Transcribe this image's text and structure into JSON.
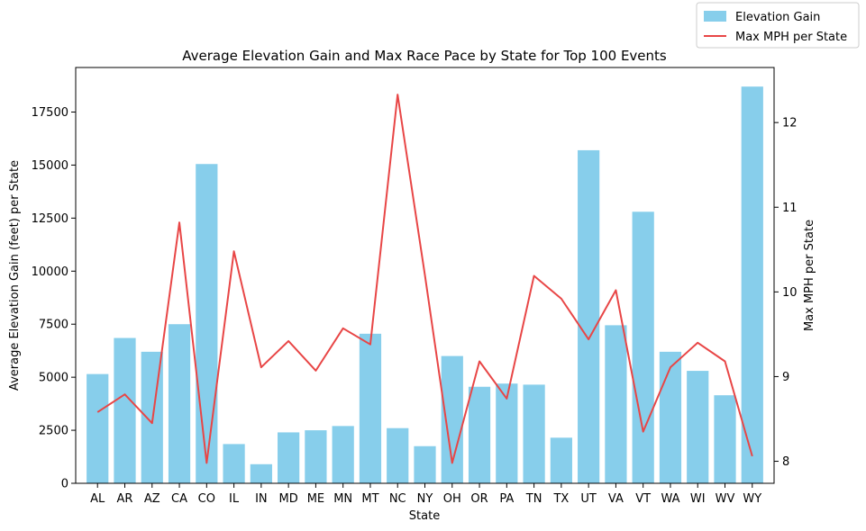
{
  "chart_data": {
    "type": "bar",
    "title": "Average Elevation Gain and Max Race Pace by State for Top 100 Events",
    "xlabel": "State",
    "ylabel": "Average Elevation Gain (feet) per State",
    "y2label": "Max MPH per State",
    "categories": [
      "AL",
      "AR",
      "AZ",
      "CA",
      "CO",
      "IL",
      "IN",
      "MD",
      "ME",
      "MN",
      "MT",
      "NC",
      "NY",
      "OH",
      "OR",
      "PA",
      "TN",
      "TX",
      "UT",
      "VA",
      "VT",
      "WA",
      "WI",
      "WV",
      "WY"
    ],
    "ylim": [
      0,
      19600
    ],
    "yticks": [
      0,
      2500,
      5000,
      7500,
      10000,
      12500,
      15000,
      17500
    ],
    "y2lim": [
      7.74,
      12.65
    ],
    "y2ticks": [
      8,
      9,
      10,
      11,
      12
    ],
    "series": [
      {
        "name": "Elevation Gain",
        "type": "bar",
        "axis": "left",
        "color": "#87CEEB",
        "values": [
          5150,
          6850,
          6200,
          7500,
          15050,
          1850,
          900,
          2400,
          2500,
          2700,
          7050,
          2600,
          1750,
          6000,
          4550,
          4700,
          4650,
          2150,
          15700,
          7450,
          12800,
          6200,
          5300,
          4150,
          18700
        ]
      },
      {
        "name": "Max MPH per State",
        "type": "line",
        "axis": "right",
        "color": "#E84646",
        "values": [
          8.58,
          8.79,
          8.45,
          10.82,
          7.98,
          10.48,
          9.11,
          9.42,
          9.07,
          9.57,
          9.38,
          12.33,
          10.2,
          7.98,
          9.18,
          8.74,
          10.19,
          9.92,
          9.44,
          10.02,
          8.35,
          9.11,
          9.4,
          9.18,
          8.06
        ]
      }
    ],
    "legend": "top-right"
  }
}
